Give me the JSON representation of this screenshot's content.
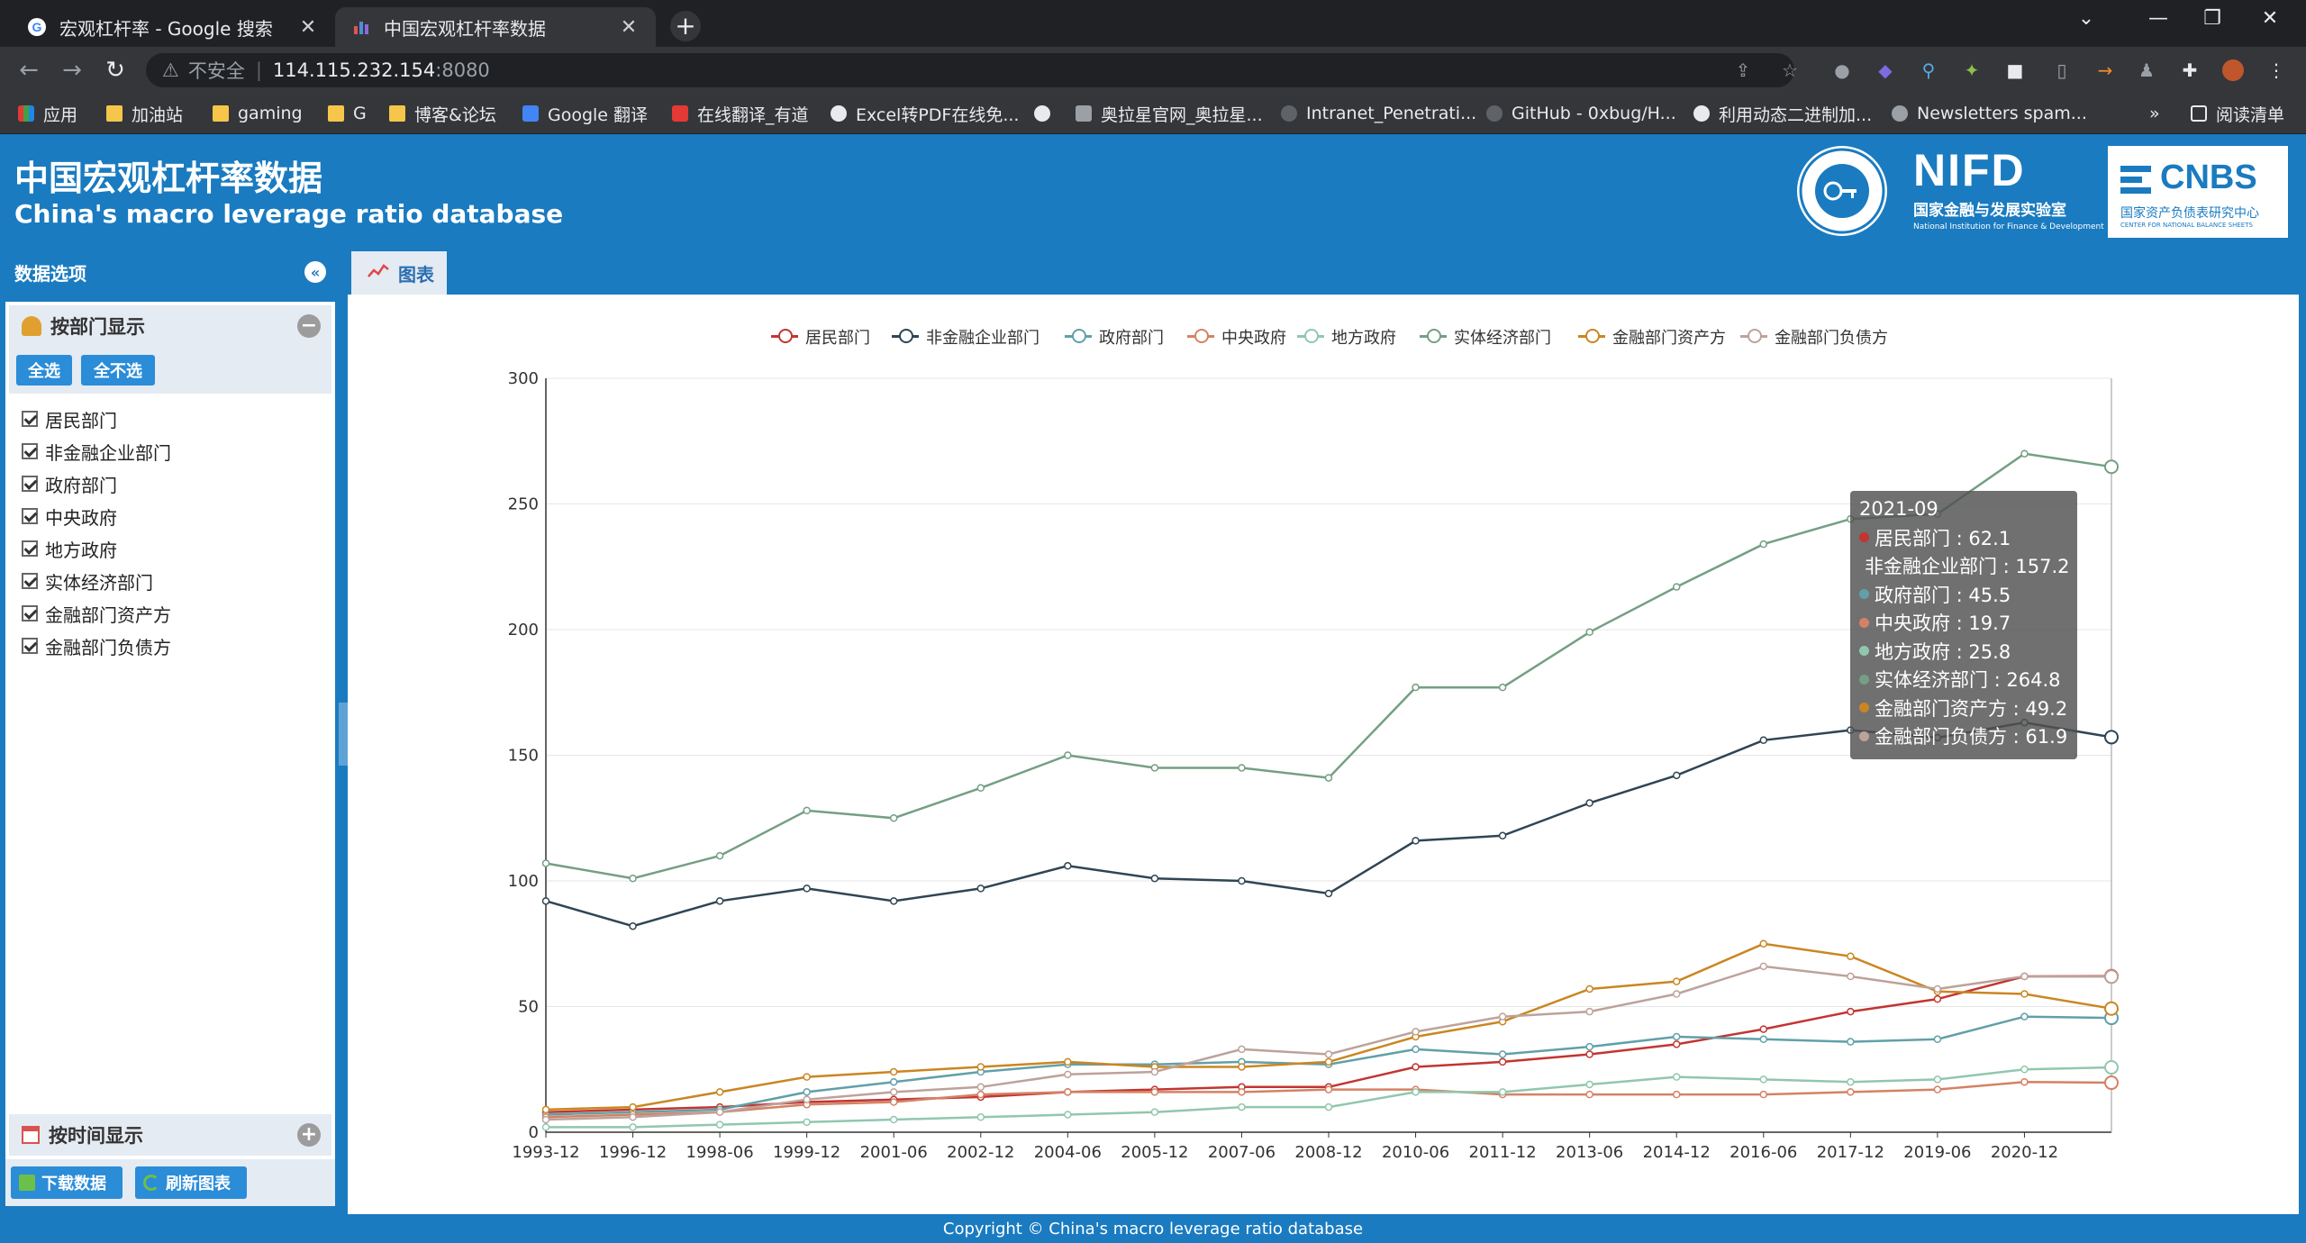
{
  "browser": {
    "tabs": [
      {
        "title": "宏观杠杆率 - Google 搜索",
        "active": false
      },
      {
        "title": "中国宏观杠杆率数据",
        "active": true
      }
    ],
    "new_tab": "+",
    "window_controls": {
      "minimize": "—",
      "restore": "❐",
      "close": "✕"
    },
    "address": {
      "security": "不安全",
      "host": "114.115.232.154",
      "port": ":8080"
    },
    "bookmarks": [
      "应用",
      "加油站",
      "gaming",
      "G",
      "博客&论坛",
      "Google 翻译",
      "在线翻译_有道",
      "Excel转PDF在线免...",
      "奥拉星官网_奥拉星...",
      "Intranet_Penetrati...",
      "GitHub - 0xbug/H...",
      "利用动态二进制加...",
      "Newsletters spam..."
    ],
    "bookmarks_more": "»",
    "reading_list": "阅读清单"
  },
  "header": {
    "title_cn": "中国宏观杠杆率数据",
    "title_en": "China's macro leverage ratio database",
    "logos": {
      "nifd_name": "NIFD",
      "nifd_cn": "国家金融与发展实验室",
      "nifd_en": "National Institution for Finance & Development",
      "cnbs_name": "CNBS",
      "cnbs_cn": "国家资产负债表研究中心",
      "cnbs_en": "CENTER FOR NATIONAL BALANCE SHEETS"
    }
  },
  "sidebar": {
    "title": "数据选项",
    "dept_panel": {
      "title": "按部门显示",
      "select_all": "全选",
      "select_none": "全不选",
      "items": [
        "居民部门",
        "非金融企业部门",
        "政府部门",
        "中央政府",
        "地方政府",
        "实体经济部门",
        "金融部门资产方",
        "金融部门负债方"
      ]
    },
    "time_panel": {
      "title": "按时间显示"
    },
    "download": "下载数据",
    "refresh": "刷新图表"
  },
  "main": {
    "tab_label": "图表"
  },
  "colors": {
    "accent": "#1a7bc0",
    "series": [
      "#c23531",
      "#2f4554",
      "#61a0a8",
      "#d48265",
      "#91c7ae",
      "#749f83",
      "#ca8622",
      "#bda29a"
    ]
  },
  "chart_data": {
    "type": "line",
    "ylim": [
      0,
      300
    ],
    "yticks": [
      0,
      50,
      100,
      150,
      200,
      250,
      300
    ],
    "xlabels": [
      "1993-12",
      "1996-12",
      "1998-06",
      "1999-12",
      "2001-06",
      "2002-12",
      "2004-06",
      "2005-12",
      "2007-06",
      "2008-12",
      "2010-06",
      "2011-12",
      "2013-06",
      "2014-12",
      "2016-06",
      "2017-12",
      "2019-06",
      "2020-12"
    ],
    "x": [
      "1993-12",
      "1996-12",
      "1998-06",
      "1999-12",
      "2001-06",
      "2002-12",
      "2004-06",
      "2005-12",
      "2007-06",
      "2008-12",
      "2010-06",
      "2011-12",
      "2013-06",
      "2014-12",
      "2016-06",
      "2017-12",
      "2019-06",
      "2020-12",
      "2021-09"
    ],
    "legend_position": "top-right",
    "grid": true,
    "series": [
      {
        "name": "居民部门",
        "values": [
          8,
          9,
          10,
          12,
          13,
          14,
          16,
          17,
          18,
          18,
          26,
          28,
          31,
          35,
          41,
          48,
          53,
          62,
          62.1
        ]
      },
      {
        "name": "非金融企业部门",
        "values": [
          92,
          82,
          92,
          97,
          92,
          97,
          106,
          101,
          100,
          95,
          116,
          118,
          131,
          142,
          156,
          160,
          157,
          163,
          157.2
        ]
      },
      {
        "name": "政府部门",
        "values": [
          7,
          8,
          9,
          16,
          20,
          24,
          27,
          27,
          28,
          27,
          33,
          31,
          34,
          38,
          37,
          36,
          37,
          46,
          45.5
        ]
      },
      {
        "name": "中央政府",
        "values": [
          6,
          7,
          8,
          11,
          12,
          15,
          16,
          16,
          16,
          17,
          17,
          15,
          15,
          15,
          15,
          16,
          17,
          20,
          19.7
        ]
      },
      {
        "name": "地方政府",
        "values": [
          2,
          2,
          3,
          4,
          5,
          6,
          7,
          8,
          10,
          10,
          16,
          16,
          19,
          22,
          21,
          20,
          21,
          25,
          25.8
        ]
      },
      {
        "name": "实体经济部门",
        "values": [
          107,
          101,
          110,
          128,
          125,
          137,
          150,
          145,
          145,
          141,
          177,
          177,
          199,
          217,
          234,
          244,
          246,
          270,
          264.8
        ]
      },
      {
        "name": "金融部门资产方",
        "values": [
          9,
          10,
          16,
          22,
          24,
          26,
          28,
          26,
          26,
          28,
          38,
          44,
          57,
          60,
          75,
          70,
          56,
          55,
          49.2
        ]
      },
      {
        "name": "金融部门负债方",
        "values": [
          5,
          6,
          8,
          13,
          16,
          18,
          23,
          24,
          33,
          31,
          40,
          46,
          48,
          55,
          66,
          62,
          57,
          62,
          61.9
        ]
      }
    ],
    "tooltip": {
      "title": "2021-09",
      "rows": [
        "居民部门 : 62.1",
        "非金融企业部门 : 157.2",
        "政府部门 : 45.5",
        "中央政府 : 19.7",
        "地方政府 : 25.8",
        "实体经济部门 : 264.8",
        "金融部门资产方 : 49.2",
        "金融部门负债方 : 61.9"
      ]
    }
  },
  "footer": {
    "copyright": "Copyright © China's macro leverage ratio database"
  }
}
